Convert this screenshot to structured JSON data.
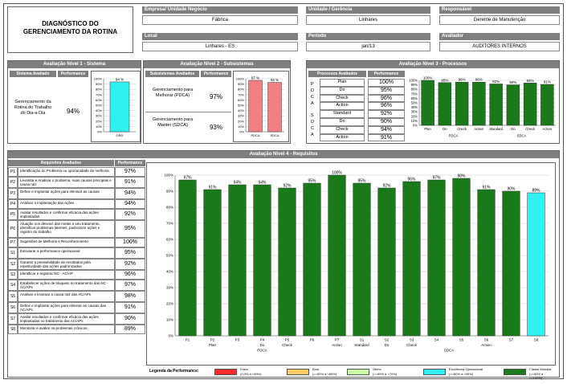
{
  "title": "DIAGNÓSTICO DO GERENCIAMENTO DA ROTINA",
  "header": {
    "empresa_label": "Empresa/ Unidade Negócio",
    "empresa_value": "Fábrica",
    "unidade_label": "Unidade / Gerência",
    "unidade_value": "Linhares",
    "responsavel_label": "Responsável",
    "responsavel_value": "Gerente de Manutenção",
    "local_label": "Local",
    "local_value": "Linhares - ES",
    "periodo_label": "Período",
    "periodo_value": "jan/13",
    "avaliador_label": "Avaliador",
    "avaliador_value": "AUDITORES INTERNOS"
  },
  "nivel1": {
    "title": "Avaliação Nível 1 - Sistema",
    "col1": "Sistema Avaliado",
    "col2": "Performance",
    "sistema": "Gerenciamento da Rotina do Trabalho do Dia-a-Dia",
    "performance": "94%",
    "chart_label": "GRD",
    "chart_value_label": "94 %"
  },
  "nivel2": {
    "title": "Avaliação Nível 2 - Subsistemas",
    "col1": "Subsistemas Avaliados",
    "col2": "Performance",
    "rows": [
      {
        "name": "Gerenciamento para Melhorar (PDCA)",
        "perf": "97%"
      },
      {
        "name": "Gerenciamento para Manter (SDCA)",
        "perf": "93%"
      }
    ],
    "bar_labels": [
      "PDCA",
      "SDCA"
    ],
    "bar_value_labels": [
      "97 %",
      "93 %"
    ]
  },
  "nivel3": {
    "title": "Avaliação Nível 3 - Processos",
    "col1": "Processos Avaliados",
    "col2": "Performance",
    "pdca_letters": [
      "P",
      "D",
      "C",
      "A"
    ],
    "sdca_letters": [
      "S",
      "D",
      "C",
      "A"
    ],
    "rows": [
      {
        "name": "Plan",
        "perf": "100%"
      },
      {
        "name": "Do",
        "perf": "95%"
      },
      {
        "name": "Check",
        "perf": "96%"
      },
      {
        "name": "Action",
        "perf": "96%"
      },
      {
        "name": "Standard",
        "perf": "92%"
      },
      {
        "name": "Do",
        "perf": "90%"
      },
      {
        "name": "Check",
        "perf": "94%"
      },
      {
        "name": "Action",
        "perf": "91%"
      }
    ],
    "group_labels": [
      "PDCA",
      "SDCA"
    ]
  },
  "nivel4": {
    "title": "Avaliação Nível 4 - Requisitos",
    "col1": "Requisitos Avaliados",
    "col2": "Performance",
    "rows": [
      {
        "code": "P1",
        "text": "Identificação do Problema ou oportunidade de melhoria",
        "perf": "97%"
      },
      {
        "code": "P2",
        "text": "Levantar e Analisar o problema, suas causas principais e causa raiz",
        "perf": "91%"
      },
      {
        "code": "P3",
        "text": "Definir e Implantar ações para eliminar as causas",
        "perf": "94%"
      },
      {
        "code": "P4",
        "text": "Analisar a implantação das ações",
        "perf": "94%"
      },
      {
        "code": "P5",
        "text": "Avaliar resultados e confirmar eficácia das ações implantadas",
        "perf": "92%"
      },
      {
        "code": "P6",
        "text": "Atuação nos desvios das metas e seu tratamento, identificar problemas latentes, padronizar ações e registro do trabalho",
        "perf": "95%"
      },
      {
        "code": "P7",
        "text": "Sugestões de Melhoria e Reconhecimento",
        "perf": "100%"
      },
      {
        "code": "S1",
        "text": "Estruturar a performance operacional",
        "perf": "95%"
      },
      {
        "code": "S2",
        "text": "Garantir a previsibilidade de resultados pela repetitividade das ações padronizadas",
        "perf": "92%"
      },
      {
        "code": "S3",
        "text": "Identificar e registrar NC - AC/AP",
        "perf": "96%"
      },
      {
        "code": "S4",
        "text": "Estabelecer ações de bloqueio no tratamento das NC - AC/APs",
        "perf": "97%"
      },
      {
        "code": "S5",
        "text": "Analisar e levantar a causa raiz das AC/APs",
        "perf": "98%"
      },
      {
        "code": "S6",
        "text": "Definir e implantar ações para eliminar as causas das AC/APs",
        "perf": "91%"
      },
      {
        "code": "S7",
        "text": "Avaliar resultados e confirmar eficácia das ações implantadas no tratamento das AC/APs",
        "perf": "90%"
      },
      {
        "code": "S8",
        "text": "Monitorar e avaliar os problemas crônicos.",
        "perf": "89%"
      }
    ],
    "sublabels": [
      "",
      "Plan",
      "",
      "Do",
      "Check",
      "",
      "Action",
      "Standard",
      "Do",
      "Check",
      "",
      "",
      "Action",
      "",
      ""
    ],
    "group_labels": [
      "PDCA",
      "SDCA"
    ]
  },
  "legend": {
    "title": "Legenda da Performance:",
    "items": [
      {
        "name": "Fraco",
        "range": "(0,0% a <50%)",
        "color": "#ff2a2a"
      },
      {
        "name": "Bom",
        "range": "(>=50% a <60%)",
        "color": "#ffc966"
      },
      {
        "name": "Ótimo",
        "range": "(>=60% a <70%)",
        "color": "#ccffaa"
      },
      {
        "name": "Excelência Operacional",
        "range": "(>=80% a <90%)",
        "color": "#33f0f0"
      },
      {
        "name": "Classe Mundial",
        "range": "(>=90% a <=100%)",
        "color": "#1a7a1a"
      }
    ]
  },
  "axis_ticks": [
    "100%",
    "90%",
    "80%",
    "70%",
    "60%",
    "50%",
    "40%",
    "30%",
    "20%",
    "10%",
    "0%"
  ],
  "chart_data": [
    {
      "type": "bar",
      "title": "",
      "categories": [
        "GRD"
      ],
      "values": [
        94
      ],
      "ylim": [
        0,
        100
      ],
      "color": "#33f0f0"
    },
    {
      "type": "bar",
      "title": "",
      "categories": [
        "PDCA",
        "SDCA"
      ],
      "values": [
        97,
        93
      ],
      "ylim": [
        0,
        100
      ],
      "color": "#f47f7f"
    },
    {
      "type": "bar",
      "title": "",
      "categories": [
        "Plan",
        "Do",
        "Check",
        "Action",
        "Standard",
        "Do",
        "Check",
        "Action"
      ],
      "groups": [
        "PDCA",
        "SDCA"
      ],
      "values": [
        100,
        95,
        96,
        96,
        92,
        90,
        94,
        91
      ],
      "ylim": [
        0,
        100
      ],
      "color": "#1a7a1a"
    },
    {
      "type": "bar",
      "title": "",
      "categories": [
        "P1",
        "P2",
        "P3",
        "P4",
        "P5",
        "P6",
        "P7",
        "S1",
        "S2",
        "S3",
        "S4",
        "S5",
        "S6",
        "S7",
        "S8"
      ],
      "groups": [
        "PDCA",
        "SDCA"
      ],
      "values": [
        97,
        91,
        94,
        94,
        92,
        95,
        100,
        95,
        92,
        96,
        97,
        98,
        91,
        90,
        89
      ],
      "ylim": [
        0,
        100
      ],
      "colors": [
        "#1a7a1a",
        "#1a7a1a",
        "#1a7a1a",
        "#1a7a1a",
        "#1a7a1a",
        "#1a7a1a",
        "#1a7a1a",
        "#1a7a1a",
        "#1a7a1a",
        "#1a7a1a",
        "#1a7a1a",
        "#1a7a1a",
        "#1a7a1a",
        "#1a7a1a",
        "#33f0f0"
      ]
    }
  ]
}
